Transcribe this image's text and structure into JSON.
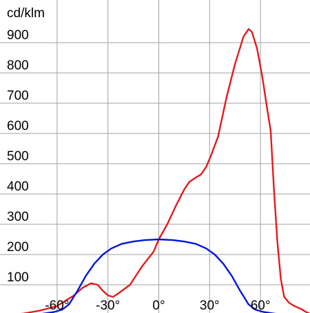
{
  "chart_data": {
    "type": "line",
    "ylabel": "cd/klm",
    "xlim": [
      -90,
      90
    ],
    "ylim": [
      0,
      950
    ],
    "x_ticks": [
      {
        "value": -60,
        "label": "-60°"
      },
      {
        "value": -30,
        "label": "-30°"
      },
      {
        "value": 0,
        "label": "0°"
      },
      {
        "value": 30,
        "label": "30°"
      },
      {
        "value": 60,
        "label": "60°"
      }
    ],
    "y_ticks": [
      {
        "value": 100,
        "label": "100"
      },
      {
        "value": 200,
        "label": "200"
      },
      {
        "value": 300,
        "label": "300"
      },
      {
        "value": 400,
        "label": "400"
      },
      {
        "value": 500,
        "label": "500"
      },
      {
        "value": 600,
        "label": "600"
      },
      {
        "value": 700,
        "label": "700"
      },
      {
        "value": 800,
        "label": "800"
      },
      {
        "value": 900,
        "label": "900"
      }
    ],
    "grid": true,
    "series": [
      {
        "color": "#e31a1c",
        "points": [
          [
            -90,
            0
          ],
          [
            -80,
            5
          ],
          [
            -70,
            15
          ],
          [
            -60,
            30
          ],
          [
            -50,
            65
          ],
          [
            -45,
            90
          ],
          [
            -40,
            105
          ],
          [
            -36,
            100
          ],
          [
            -33,
            80
          ],
          [
            -30,
            65
          ],
          [
            -27,
            60
          ],
          [
            -23,
            75
          ],
          [
            -17,
            100
          ],
          [
            -10,
            160
          ],
          [
            -3,
            210
          ],
          [
            0,
            250
          ],
          [
            5,
            300
          ],
          [
            10,
            360
          ],
          [
            15,
            415
          ],
          [
            18,
            440
          ],
          [
            22,
            455
          ],
          [
            25,
            465
          ],
          [
            28,
            490
          ],
          [
            31,
            530
          ],
          [
            35,
            590
          ],
          [
            40,
            720
          ],
          [
            45,
            830
          ],
          [
            50,
            920
          ],
          [
            53,
            945
          ],
          [
            55,
            935
          ],
          [
            58,
            880
          ],
          [
            61,
            790
          ],
          [
            64,
            680
          ],
          [
            66,
            610
          ],
          [
            68,
            410
          ],
          [
            70,
            240
          ],
          [
            72,
            120
          ],
          [
            74,
            60
          ],
          [
            77,
            40
          ],
          [
            80,
            30
          ],
          [
            84,
            20
          ],
          [
            87,
            10
          ],
          [
            90,
            2
          ]
        ]
      },
      {
        "color": "#0015d6",
        "points": [
          [
            -90,
            0
          ],
          [
            -75,
            0
          ],
          [
            -68,
            5
          ],
          [
            -62,
            10
          ],
          [
            -57,
            18
          ],
          [
            -53,
            35
          ],
          [
            -48,
            80
          ],
          [
            -43,
            130
          ],
          [
            -38,
            170
          ],
          [
            -33,
            200
          ],
          [
            -28,
            220
          ],
          [
            -22,
            235
          ],
          [
            -15,
            243
          ],
          [
            -8,
            248
          ],
          [
            0,
            250
          ],
          [
            8,
            248
          ],
          [
            15,
            243
          ],
          [
            22,
            235
          ],
          [
            28,
            220
          ],
          [
            33,
            200
          ],
          [
            38,
            170
          ],
          [
            43,
            130
          ],
          [
            48,
            80
          ],
          [
            53,
            35
          ],
          [
            57,
            18
          ],
          [
            62,
            10
          ],
          [
            68,
            5
          ],
          [
            75,
            0
          ],
          [
            90,
            0
          ]
        ]
      }
    ]
  }
}
